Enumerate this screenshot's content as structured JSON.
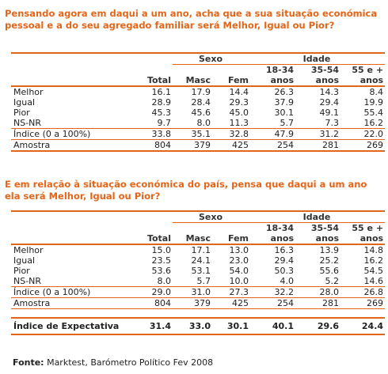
{
  "q1": {
    "title": "Pensando agora em daqui a um ano, acha que a sua situação económica pessoal e a do seu agregado familiar será Melhor, Igual ou Pior?"
  },
  "q2": {
    "title": "E em relação à situação económica do país, pensa que daqui a um ano ela será Melhor, Igual ou Pior?"
  },
  "header": {
    "sexo": "Sexo",
    "idade": "Idade",
    "cols": [
      "Total",
      "Masc",
      "Fem",
      "18-34",
      "35-54",
      "55 e +"
    ],
    "col_line2": [
      "anos",
      "anos",
      "anos"
    ]
  },
  "table1": {
    "rows": [
      {
        "label": "Melhor",
        "values": [
          "16.1",
          "17.9",
          "14.4",
          "26.3",
          "14.3",
          "8.4"
        ]
      },
      {
        "label": "Igual",
        "values": [
          "28.9",
          "28.4",
          "29.3",
          "37.9",
          "29.4",
          "19.9"
        ]
      },
      {
        "label": "Pior",
        "values": [
          "45.3",
          "45.6",
          "45.0",
          "30.1",
          "49.1",
          "55.4"
        ]
      },
      {
        "label": "NS-NR",
        "values": [
          "9.7",
          "8.0",
          "11.3",
          "5.7",
          "7.3",
          "16.2"
        ]
      },
      {
        "label": "Índice (0 a 100%)",
        "values": [
          "33.8",
          "35.1",
          "32.8",
          "47.9",
          "31.2",
          "22.0"
        ]
      },
      {
        "label": "Amostra",
        "values": [
          "804",
          "379",
          "425",
          "254",
          "281",
          "269"
        ]
      }
    ]
  },
  "table2": {
    "rows": [
      {
        "label": "Melhor",
        "values": [
          "15.0",
          "17.1",
          "13.0",
          "16.3",
          "13.9",
          "14.8"
        ]
      },
      {
        "label": "Igual",
        "values": [
          "23.5",
          "24.1",
          "23.0",
          "29.4",
          "25.2",
          "16.2"
        ]
      },
      {
        "label": "Pior",
        "values": [
          "53.6",
          "53.1",
          "54.0",
          "50.3",
          "55.6",
          "54.5"
        ]
      },
      {
        "label": "NS-NR",
        "values": [
          "8.0",
          "5.7",
          "10.0",
          "4.0",
          "5.2",
          "14.6"
        ]
      },
      {
        "label": "Índice (0 a 100%)",
        "values": [
          "29.0",
          "31.0",
          "27.3",
          "32.2",
          "28.0",
          "26.8"
        ]
      },
      {
        "label": "Amostra",
        "values": [
          "804",
          "379",
          "425",
          "254",
          "281",
          "269"
        ]
      }
    ],
    "expectativa": {
      "label": "Índice de Expectativa",
      "values": [
        "31.4",
        "33.0",
        "30.1",
        "40.1",
        "29.6",
        "24.4"
      ]
    }
  },
  "source": {
    "label": "Fonte:",
    "text": " Marktest, Barómetro Político Fev 2008"
  },
  "colors": {
    "accent": "#e2661a"
  }
}
